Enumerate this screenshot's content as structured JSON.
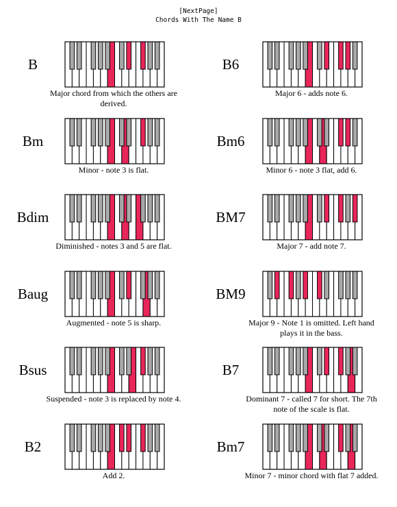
{
  "header": {
    "nav_link": "[NextPage]",
    "title": "Chords With The Name B"
  },
  "colors": {
    "highlight": "#e8265a",
    "black_key": "#a8a8a8",
    "outline": "#000000",
    "white_key": "#ffffff"
  },
  "chords": [
    {
      "name": "B",
      "description": "Major chord from which the others are derived.",
      "keys": [
        11,
        15,
        18
      ]
    },
    {
      "name": "B6",
      "description": "Major 6 - adds note 6.",
      "keys": [
        11,
        15,
        18,
        20
      ]
    },
    {
      "name": "Bm",
      "description": "Minor - note 3 is flat.",
      "keys": [
        11,
        14,
        18
      ]
    },
    {
      "name": "Bm6",
      "description": "Minor 6 - note 3 flat, add 6.",
      "keys": [
        11,
        14,
        18,
        20
      ]
    },
    {
      "name": "Bdim",
      "description": "Diminished - notes 3 and 5 are flat.",
      "keys": [
        11,
        14,
        17
      ]
    },
    {
      "name": "BM7",
      "description": "Major 7 - add note 7.",
      "keys": [
        11,
        15,
        18,
        22
      ]
    },
    {
      "name": "Baug",
      "description": "Augmented - note 5 is sharp.",
      "keys": [
        11,
        15,
        19
      ]
    },
    {
      "name": "BM9",
      "description": "Major 9 - Note 1 is omitted. Left hand plays it in the bass.",
      "keys": [
        3,
        6,
        10,
        13
      ]
    },
    {
      "name": "Bsus",
      "description": "Suspended - note 3 is replaced by note 4.",
      "keys": [
        11,
        16,
        18
      ]
    },
    {
      "name": "B7",
      "description": "Dominant 7 - called 7 for short. The 7th note of the scale is flat.",
      "keys": [
        11,
        15,
        18,
        21
      ]
    },
    {
      "name": "B2",
      "description": "Add 2.",
      "keys": [
        11,
        13,
        15,
        18
      ]
    },
    {
      "name": "Bm7",
      "description": "Minor 7 - minor chord with flat 7 added.",
      "keys": [
        11,
        14,
        18,
        21
      ]
    }
  ]
}
